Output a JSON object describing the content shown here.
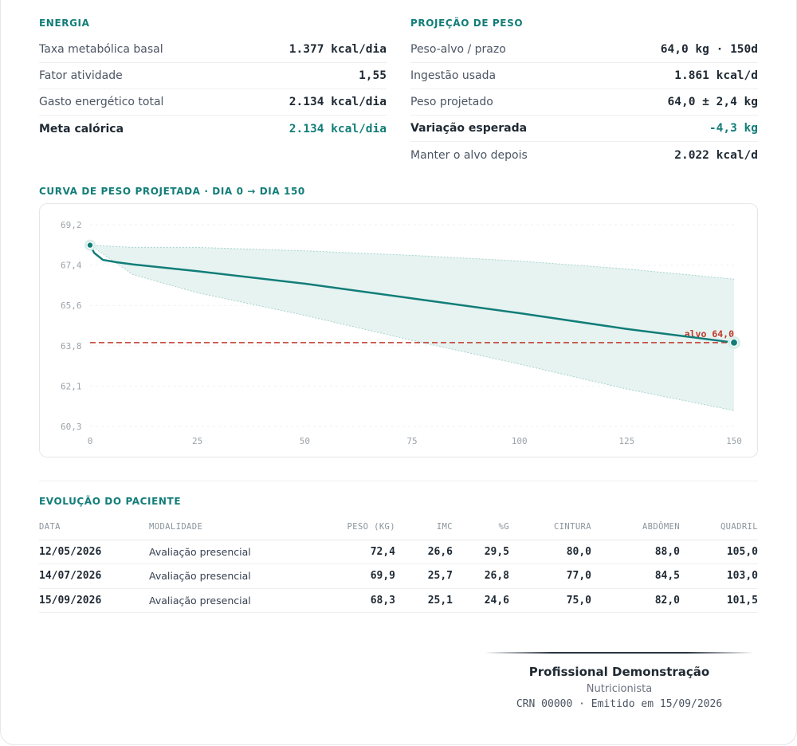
{
  "energia": {
    "title": "ENERGIA",
    "rows": [
      {
        "label": "Taxa metabólica basal",
        "value": "1.377 kcal/dia"
      },
      {
        "label": "Fator atividade",
        "value": "1,55"
      },
      {
        "label": "Gasto energético total",
        "value": "2.134 kcal/dia"
      },
      {
        "label": "Meta calórica",
        "value": "2.134 kcal/dia"
      }
    ]
  },
  "projecao": {
    "title": "PROJEÇÃO DE PESO",
    "rows": [
      {
        "label": "Peso-alvo / prazo",
        "value": "64,0 kg · 150d"
      },
      {
        "label": "Ingestão usada",
        "value": "1.861 kcal/d"
      },
      {
        "label": "Peso projetado",
        "value": "64,0 ± 2,4 kg"
      },
      {
        "label": "Variação esperada",
        "value": "-4,3 kg"
      },
      {
        "label": "Manter o alvo depois",
        "value": "2.022 kcal/d"
      }
    ]
  },
  "curva": {
    "title": "CURVA DE PESO PROJETADA · DIA 0 → DIA 150"
  },
  "chart_data": {
    "type": "line",
    "title": "CURVA DE PESO PROJETADA · DIA 0 → DIA 150",
    "xlim": [
      0,
      150
    ],
    "ylim": [
      60.3,
      69.2
    ],
    "x_ticks": [
      "0",
      "25",
      "50",
      "75",
      "100",
      "125",
      "150"
    ],
    "y_ticks": [
      "69,2",
      "67,4",
      "65,6",
      "63,8",
      "62,1",
      "60,3"
    ],
    "grid": true,
    "series": [
      {
        "values": [
          [
            0,
            68.3
          ],
          [
            1,
            67.95
          ],
          [
            3,
            67.65
          ],
          [
            6,
            67.55
          ],
          [
            10,
            67.45
          ],
          [
            25,
            67.15
          ],
          [
            50,
            66.6
          ],
          [
            75,
            65.95
          ],
          [
            100,
            65.3
          ],
          [
            125,
            64.6
          ],
          [
            150,
            64.0
          ]
        ]
      }
    ],
    "band": {
      "upper": [
        [
          0,
          68.3
        ],
        [
          10,
          68.2
        ],
        [
          25,
          68.2
        ],
        [
          50,
          68.05
        ],
        [
          75,
          67.85
        ],
        [
          100,
          67.6
        ],
        [
          125,
          67.25
        ],
        [
          150,
          66.8
        ]
      ],
      "lower": [
        [
          0,
          68.3
        ],
        [
          10,
          67.0
        ],
        [
          25,
          66.2
        ],
        [
          50,
          65.2
        ],
        [
          75,
          64.1
        ],
        [
          100,
          63.05
        ],
        [
          125,
          61.95
        ],
        [
          150,
          61.0
        ]
      ]
    },
    "target": {
      "y": 64.0,
      "label": "alvo 64,0"
    },
    "colors": {
      "line": "#127d78",
      "band": "#e6f3f1",
      "target": "#c0392b"
    }
  },
  "evolucao": {
    "title": "EVOLUÇÃO DO PACIENTE",
    "columns": [
      "DATA",
      "MODALIDADE",
      "PESO (KG)",
      "IMC",
      "%G",
      "CINTURA",
      "ABDÔMEN",
      "QUADRIL"
    ],
    "rows": [
      [
        "12/05/2026",
        "Avaliação presencial",
        "72,4",
        "26,6",
        "29,5",
        "80,0",
        "88,0",
        "105,0"
      ],
      [
        "14/07/2026",
        "Avaliação presencial",
        "69,9",
        "25,7",
        "26,8",
        "77,0",
        "84,5",
        "103,0"
      ],
      [
        "15/09/2026",
        "Avaliação presencial",
        "68,3",
        "25,1",
        "24,6",
        "75,0",
        "82,0",
        "101,5"
      ]
    ]
  },
  "assinatura": {
    "nome": "Profissional Demonstração",
    "cargo": "Nutricionista",
    "meta": "CRN 00000 · Emitido em 15/09/2026"
  }
}
